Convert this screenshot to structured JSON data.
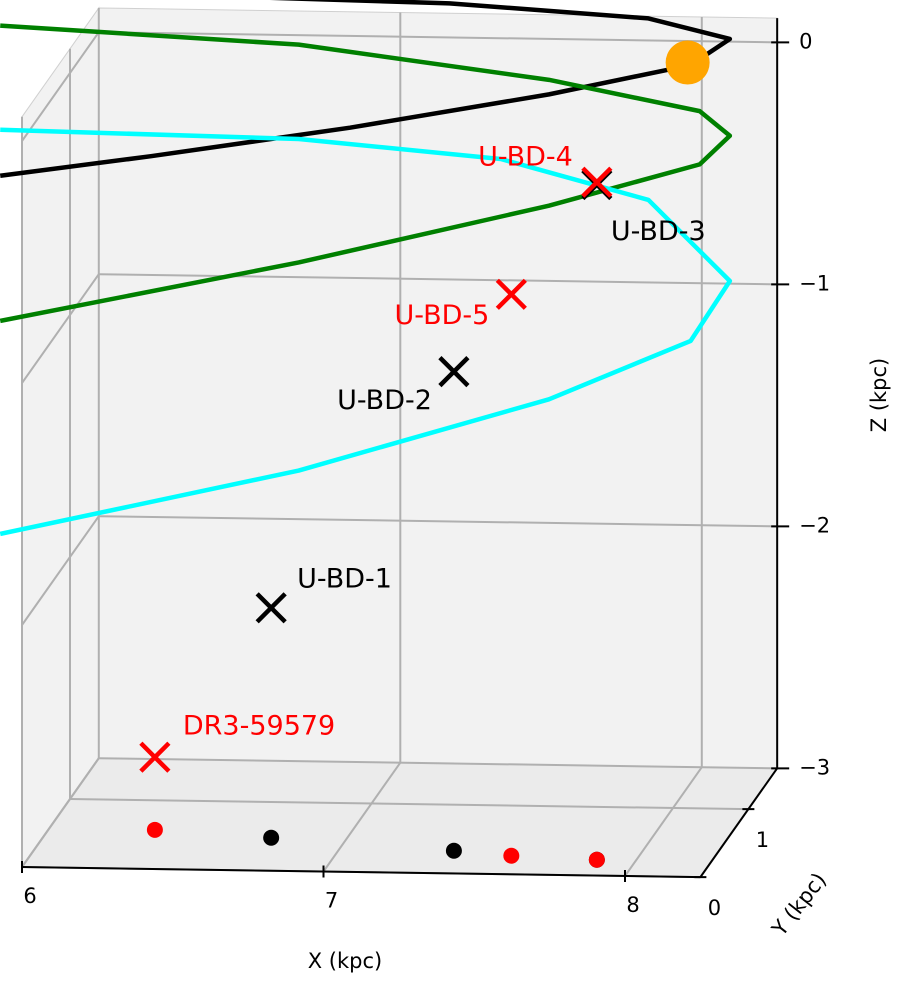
{
  "chart_data": {
    "type": "scatter3d",
    "xlabel": "X (kpc)",
    "ylabel": "Y (kpc)",
    "zlabel": "Z (kpc)",
    "xlim": [
      6,
      8.25
    ],
    "xticks": [
      6,
      7,
      8
    ],
    "ylim": [
      0,
      1.6
    ],
    "yticks": [
      0,
      1
    ],
    "zlim": [
      -3,
      0.1
    ],
    "zticks": [
      0,
      {
        "value": -1,
        "label": "−1"
      },
      {
        "value": -2,
        "label": "−2"
      },
      {
        "value": -3,
        "label": "−3"
      }
    ],
    "grid": true,
    "floor_projection": true,
    "lines": [
      {
        "color": "#000000",
        "x": [
          6.38,
          7.37,
          8.03,
          8.3,
          8.17,
          7.7,
          7.04,
          6.38,
          5.88
        ],
        "y": [
          0.3,
          0.3,
          0.3,
          0.3,
          0.3,
          0.3,
          0.3,
          0.3,
          0.3
        ],
        "z": [
          0.53,
          0.51,
          0.46,
          0.38,
          0.27,
          0.14,
          -0.01,
          -0.14,
          -0.23
        ]
      },
      {
        "color": "#008000",
        "x": [
          5.88,
          6.87,
          7.7,
          8.2,
          8.3,
          8.2,
          7.7,
          6.87,
          5.88
        ],
        "y": [
          0.3,
          0.3,
          0.3,
          0.3,
          0.3,
          0.3,
          0.3,
          0.3,
          0.3
        ],
        "z": [
          0.39,
          0.33,
          0.2,
          0.08,
          -0.02,
          -0.14,
          -0.32,
          -0.57,
          -0.83
        ]
      },
      {
        "color": "#00ffff",
        "x": [
          5.88,
          6.87,
          7.54,
          8.03,
          8.3,
          8.17,
          7.7,
          6.87,
          5.88
        ],
        "y": [
          0.3,
          0.3,
          0.3,
          0.3,
          0.3,
          0.3,
          0.3,
          0.3,
          0.3
        ],
        "z": [
          -0.04,
          -0.06,
          -0.13,
          -0.29,
          -0.62,
          -0.87,
          -1.12,
          -1.43,
          -1.71
        ]
      }
    ],
    "points": [
      {
        "label": "DR3-59579",
        "color": "#ff0000",
        "marker": "x",
        "x": 6.35,
        "y": 0.57,
        "z": -2.7
      },
      {
        "label": "U-BD-1",
        "color": "#000000",
        "marker": "x",
        "x": 6.75,
        "y": 0.48,
        "z": -2.05
      },
      {
        "label": "U-BD-2",
        "color": "#000000",
        "marker": "x",
        "x": 7.38,
        "y": 0.33,
        "z": -1.02
      },
      {
        "label": "U-BD-3",
        "color": "#000000",
        "marker": "x",
        "x": 7.87,
        "y": 0.23,
        "z": -0.21
      },
      {
        "label": "U-BD-5",
        "color": "#ff0000",
        "marker": "x",
        "x": 7.58,
        "y": 0.27,
        "z": -0.68
      },
      {
        "label": "U-BD-4",
        "color": "#ff0000",
        "marker": "x",
        "x": 7.87,
        "y": 0.23,
        "z": -0.2
      }
    ],
    "sun": {
      "color": "#ffa500",
      "marker": "o",
      "x": 8.16,
      "y": 0.3,
      "z": 0.28
    }
  }
}
